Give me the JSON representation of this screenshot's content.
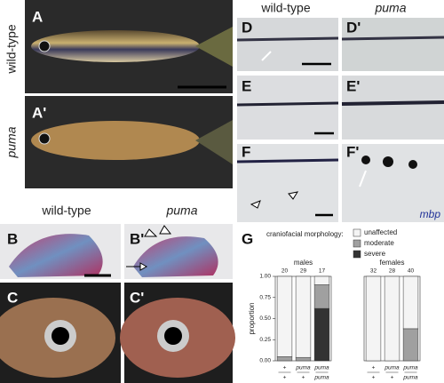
{
  "panels": {
    "A": "A",
    "A2": "A'",
    "B": "B",
    "B2": "B'",
    "C": "C",
    "C2": "C'",
    "D": "D",
    "D2": "D'",
    "E": "E",
    "E2": "E'",
    "F": "F",
    "F2": "F'",
    "G": "G"
  },
  "left_headers": {
    "row_wt": "wild-type",
    "row_puma": "puma",
    "col_wt": "wild-type",
    "col_puma": "puma"
  },
  "right_headers": {
    "col_wt": "wild-type",
    "col_puma": "puma",
    "stain": "mbp"
  },
  "legend": {
    "title": "craniofacial morphology:"
  },
  "chart_data": [
    {
      "type": "bar",
      "stacked": true,
      "title": "males",
      "y_label": "proportion",
      "categories": [
        [
          "+",
          "+"
        ],
        [
          "puma",
          "+"
        ],
        [
          "puma",
          "puma"
        ]
      ],
      "n": [
        20,
        29,
        17
      ],
      "series": [
        {
          "name": "severe",
          "color": "#333333",
          "values": [
            0,
            0,
            0.62
          ]
        },
        {
          "name": "moderate",
          "color": "#a0a0a0",
          "values": [
            0.05,
            0.04,
            0.28
          ]
        },
        {
          "name": "unaffected",
          "color": "#f4f4f4",
          "values": [
            0.95,
            0.96,
            0.1
          ]
        }
      ],
      "ylim": [
        0,
        1
      ],
      "yticks": [
        {
          "value": 0,
          "label": "0.00"
        },
        {
          "value": 0.25,
          "label": "0.25"
        },
        {
          "value": 0.5,
          "label": "0.50"
        },
        {
          "value": 0.75,
          "label": "0.75"
        },
        {
          "value": 1,
          "label": "1.00"
        }
      ]
    },
    {
      "type": "bar",
      "stacked": true,
      "title": "females",
      "categories": [
        [
          "+",
          "+"
        ],
        [
          "puma",
          "+"
        ],
        [
          "puma",
          "puma"
        ]
      ],
      "n": [
        32,
        28,
        40
      ],
      "series": [
        {
          "name": "severe",
          "color": "#333333",
          "values": [
            0,
            0,
            0
          ]
        },
        {
          "name": "moderate",
          "color": "#a0a0a0",
          "values": [
            0,
            0,
            0.38
          ]
        },
        {
          "name": "unaffected",
          "color": "#f4f4f4",
          "values": [
            1,
            1,
            0.62
          ]
        }
      ],
      "ylim": [
        0,
        1
      ]
    }
  ]
}
